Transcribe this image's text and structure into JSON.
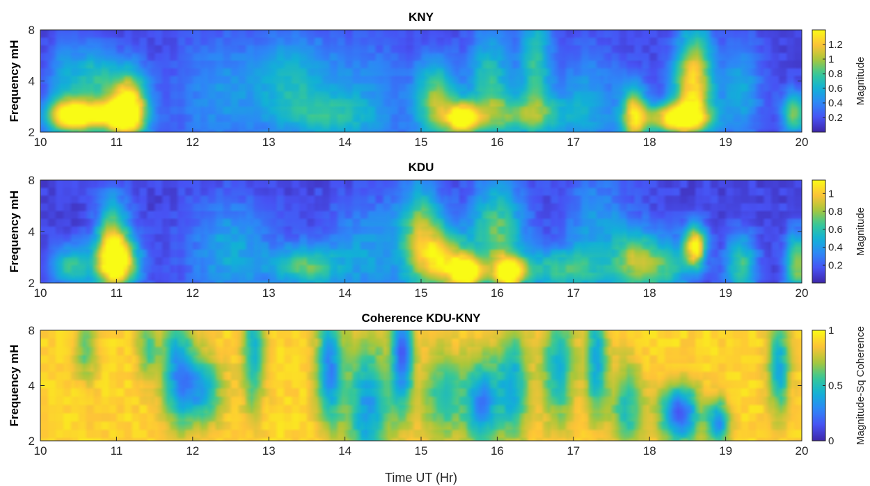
{
  "chart_data": [
    {
      "type": "heatmap",
      "title": "KNY",
      "ylabel": "Frequency mH",
      "xlabel": "",
      "xlim": [
        10,
        20
      ],
      "ylim": [
        2,
        8
      ],
      "x_ticks": [
        "10",
        "11",
        "12",
        "13",
        "14",
        "15",
        "16",
        "17",
        "18",
        "19",
        "20"
      ],
      "y_ticks": [
        "2",
        "4",
        "8"
      ],
      "y_scale": "log",
      "colorbar": {
        "label": "Magnitude",
        "range": [
          0,
          1.4
        ],
        "ticks": [
          "0.2",
          "0.4",
          "0.6",
          "0.8",
          "1",
          "1.2"
        ],
        "tick_values": [
          0.2,
          0.4,
          0.6,
          0.8,
          1.0,
          1.2
        ]
      },
      "background": 0.15,
      "blobs": [
        {
          "t": 10.35,
          "f": 2.5,
          "a": 1.1,
          "wt": 0.22,
          "wf": 0.18
        },
        {
          "t": 10.8,
          "f": 2.5,
          "a": 1.0,
          "wt": 0.3,
          "wf": 0.15
        },
        {
          "t": 11.15,
          "f": 2.8,
          "a": 1.35,
          "wt": 0.18,
          "wf": 0.35
        },
        {
          "t": 10.7,
          "f": 4.2,
          "a": 0.55,
          "wt": 0.2,
          "wf": 0.3
        },
        {
          "t": 10.3,
          "f": 4.5,
          "a": 0.35,
          "wt": 0.15,
          "wf": 0.3
        },
        {
          "t": 13.3,
          "f": 3.8,
          "a": 0.5,
          "wt": 0.4,
          "wf": 0.5
        },
        {
          "t": 13.8,
          "f": 2.5,
          "a": 0.35,
          "wt": 0.35,
          "wf": 0.2
        },
        {
          "t": 15.2,
          "f": 3.0,
          "a": 0.8,
          "wt": 0.2,
          "wf": 0.4
        },
        {
          "t": 15.55,
          "f": 2.4,
          "a": 1.15,
          "wt": 0.15,
          "wf": 0.15
        },
        {
          "t": 15.9,
          "f": 4.0,
          "a": 0.6,
          "wt": 0.2,
          "wf": 0.5
        },
        {
          "t": 16.3,
          "f": 2.5,
          "a": 0.6,
          "wt": 0.5,
          "wf": 0.2
        },
        {
          "t": 16.5,
          "f": 5.0,
          "a": 0.6,
          "wt": 0.15,
          "wf": 0.6
        },
        {
          "t": 17.8,
          "f": 2.5,
          "a": 1.0,
          "wt": 0.12,
          "wf": 0.3
        },
        {
          "t": 18.35,
          "f": 2.4,
          "a": 1.2,
          "wt": 0.3,
          "wf": 0.15
        },
        {
          "t": 18.55,
          "f": 3.5,
          "a": 0.8,
          "wt": 0.2,
          "wf": 0.4
        },
        {
          "t": 18.6,
          "f": 5.5,
          "a": 0.5,
          "wt": 0.15,
          "wf": 0.5
        },
        {
          "t": 19.2,
          "f": 3.5,
          "a": 0.4,
          "wt": 0.2,
          "wf": 0.5
        },
        {
          "t": 19.9,
          "f": 2.6,
          "a": 0.8,
          "wt": 0.12,
          "wf": 0.2
        },
        {
          "t": 12.3,
          "f": 3.2,
          "a": 0.3,
          "wt": 0.4,
          "wf": 0.6
        },
        {
          "t": 14.3,
          "f": 3.0,
          "a": 0.3,
          "wt": 0.4,
          "wf": 0.6
        },
        {
          "t": 17.2,
          "f": 3.2,
          "a": 0.35,
          "wt": 0.3,
          "wf": 0.5
        }
      ]
    },
    {
      "type": "heatmap",
      "title": "KDU",
      "ylabel": "Frequency mH",
      "xlabel": "",
      "xlim": [
        10,
        20
      ],
      "ylim": [
        2,
        8
      ],
      "x_ticks": [
        "10",
        "11",
        "12",
        "13",
        "14",
        "15",
        "16",
        "17",
        "18",
        "19",
        "20"
      ],
      "y_ticks": [
        "2",
        "4",
        "8"
      ],
      "y_scale": "log",
      "colorbar": {
        "label": "Magnitude",
        "range": [
          0,
          1.15
        ],
        "ticks": [
          "0.2",
          "0.4",
          "0.6",
          "0.8",
          "1"
        ],
        "tick_values": [
          0.2,
          0.4,
          0.6,
          0.8,
          1.0
        ]
      },
      "background": 0.12,
      "blobs": [
        {
          "t": 11.0,
          "f": 2.6,
          "a": 1.05,
          "wt": 0.2,
          "wf": 0.25
        },
        {
          "t": 10.95,
          "f": 3.8,
          "a": 0.6,
          "wt": 0.15,
          "wf": 0.4
        },
        {
          "t": 10.4,
          "f": 2.5,
          "a": 0.5,
          "wt": 0.2,
          "wf": 0.2
        },
        {
          "t": 13.5,
          "f": 2.5,
          "a": 0.55,
          "wt": 0.3,
          "wf": 0.2
        },
        {
          "t": 12.5,
          "f": 3.0,
          "a": 0.35,
          "wt": 0.4,
          "wf": 0.5
        },
        {
          "t": 15.0,
          "f": 4.0,
          "a": 0.6,
          "wt": 0.2,
          "wf": 0.5
        },
        {
          "t": 15.3,
          "f": 2.7,
          "a": 0.75,
          "wt": 0.25,
          "wf": 0.3
        },
        {
          "t": 15.6,
          "f": 2.3,
          "a": 1.0,
          "wt": 0.15,
          "wf": 0.15
        },
        {
          "t": 16.15,
          "f": 2.3,
          "a": 0.95,
          "wt": 0.15,
          "wf": 0.15
        },
        {
          "t": 16.0,
          "f": 4.0,
          "a": 0.6,
          "wt": 0.25,
          "wf": 0.5
        },
        {
          "t": 16.8,
          "f": 2.4,
          "a": 0.5,
          "wt": 0.4,
          "wf": 0.2
        },
        {
          "t": 17.8,
          "f": 2.7,
          "a": 0.55,
          "wt": 0.2,
          "wf": 0.3
        },
        {
          "t": 18.6,
          "f": 3.3,
          "a": 1.0,
          "wt": 0.1,
          "wf": 0.2
        },
        {
          "t": 18.2,
          "f": 2.5,
          "a": 0.5,
          "wt": 0.25,
          "wf": 0.3
        },
        {
          "t": 19.2,
          "f": 2.5,
          "a": 0.55,
          "wt": 0.15,
          "wf": 0.3
        },
        {
          "t": 19.95,
          "f": 2.6,
          "a": 0.7,
          "wt": 0.12,
          "wf": 0.3
        },
        {
          "t": 14.3,
          "f": 3.0,
          "a": 0.3,
          "wt": 0.4,
          "wf": 0.5
        },
        {
          "t": 17.3,
          "f": 4.0,
          "a": 0.3,
          "wt": 0.3,
          "wf": 0.6
        }
      ]
    },
    {
      "type": "heatmap",
      "title": "Coherence KDU-KNY",
      "ylabel": "Frequency mH",
      "xlabel": "Time UT (Hr)",
      "xlim": [
        10,
        20
      ],
      "ylim": [
        2,
        8
      ],
      "x_ticks": [
        "10",
        "11",
        "12",
        "13",
        "14",
        "15",
        "16",
        "17",
        "18",
        "19",
        "20"
      ],
      "y_ticks": [
        "2",
        "4",
        "8"
      ],
      "y_scale": "log",
      "colorbar": {
        "label": "Magnitude-Sq Coherence",
        "range": [
          0,
          1
        ],
        "ticks": [
          "0",
          "0.5",
          "1"
        ],
        "tick_values": [
          0,
          0.5,
          1
        ]
      },
      "background": 0.9,
      "blobs": [
        {
          "t": 11.8,
          "f": 5.0,
          "a": -0.5,
          "wt": 0.15,
          "wf": 0.5
        },
        {
          "t": 12.1,
          "f": 3.8,
          "a": -0.5,
          "wt": 0.2,
          "wf": 0.3
        },
        {
          "t": 12.8,
          "f": 6.0,
          "a": -0.45,
          "wt": 0.1,
          "wf": 0.5
        },
        {
          "t": 13.8,
          "f": 5.0,
          "a": -0.6,
          "wt": 0.12,
          "wf": 0.5
        },
        {
          "t": 14.3,
          "f": 3.0,
          "a": -0.55,
          "wt": 0.2,
          "wf": 0.6
        },
        {
          "t": 14.75,
          "f": 6.0,
          "a": -0.7,
          "wt": 0.1,
          "wf": 0.5
        },
        {
          "t": 15.3,
          "f": 3.5,
          "a": -0.4,
          "wt": 0.2,
          "wf": 0.4
        },
        {
          "t": 15.8,
          "f": 3.2,
          "a": -0.6,
          "wt": 0.15,
          "wf": 0.4
        },
        {
          "t": 16.2,
          "f": 4.0,
          "a": -0.5,
          "wt": 0.15,
          "wf": 0.5
        },
        {
          "t": 16.8,
          "f": 5.0,
          "a": -0.45,
          "wt": 0.15,
          "wf": 0.5
        },
        {
          "t": 17.3,
          "f": 5.5,
          "a": -0.5,
          "wt": 0.1,
          "wf": 0.5
        },
        {
          "t": 17.7,
          "f": 3.0,
          "a": -0.4,
          "wt": 0.15,
          "wf": 0.4
        },
        {
          "t": 18.4,
          "f": 2.8,
          "a": -0.75,
          "wt": 0.18,
          "wf": 0.25
        },
        {
          "t": 18.9,
          "f": 2.5,
          "a": -0.6,
          "wt": 0.1,
          "wf": 0.2
        },
        {
          "t": 19.7,
          "f": 5.0,
          "a": -0.5,
          "wt": 0.1,
          "wf": 0.4
        },
        {
          "t": 10.6,
          "f": 6.5,
          "a": -0.3,
          "wt": 0.1,
          "wf": 0.3
        },
        {
          "t": 11.4,
          "f": 6.5,
          "a": -0.3,
          "wt": 0.1,
          "wf": 0.3
        }
      ]
    }
  ]
}
